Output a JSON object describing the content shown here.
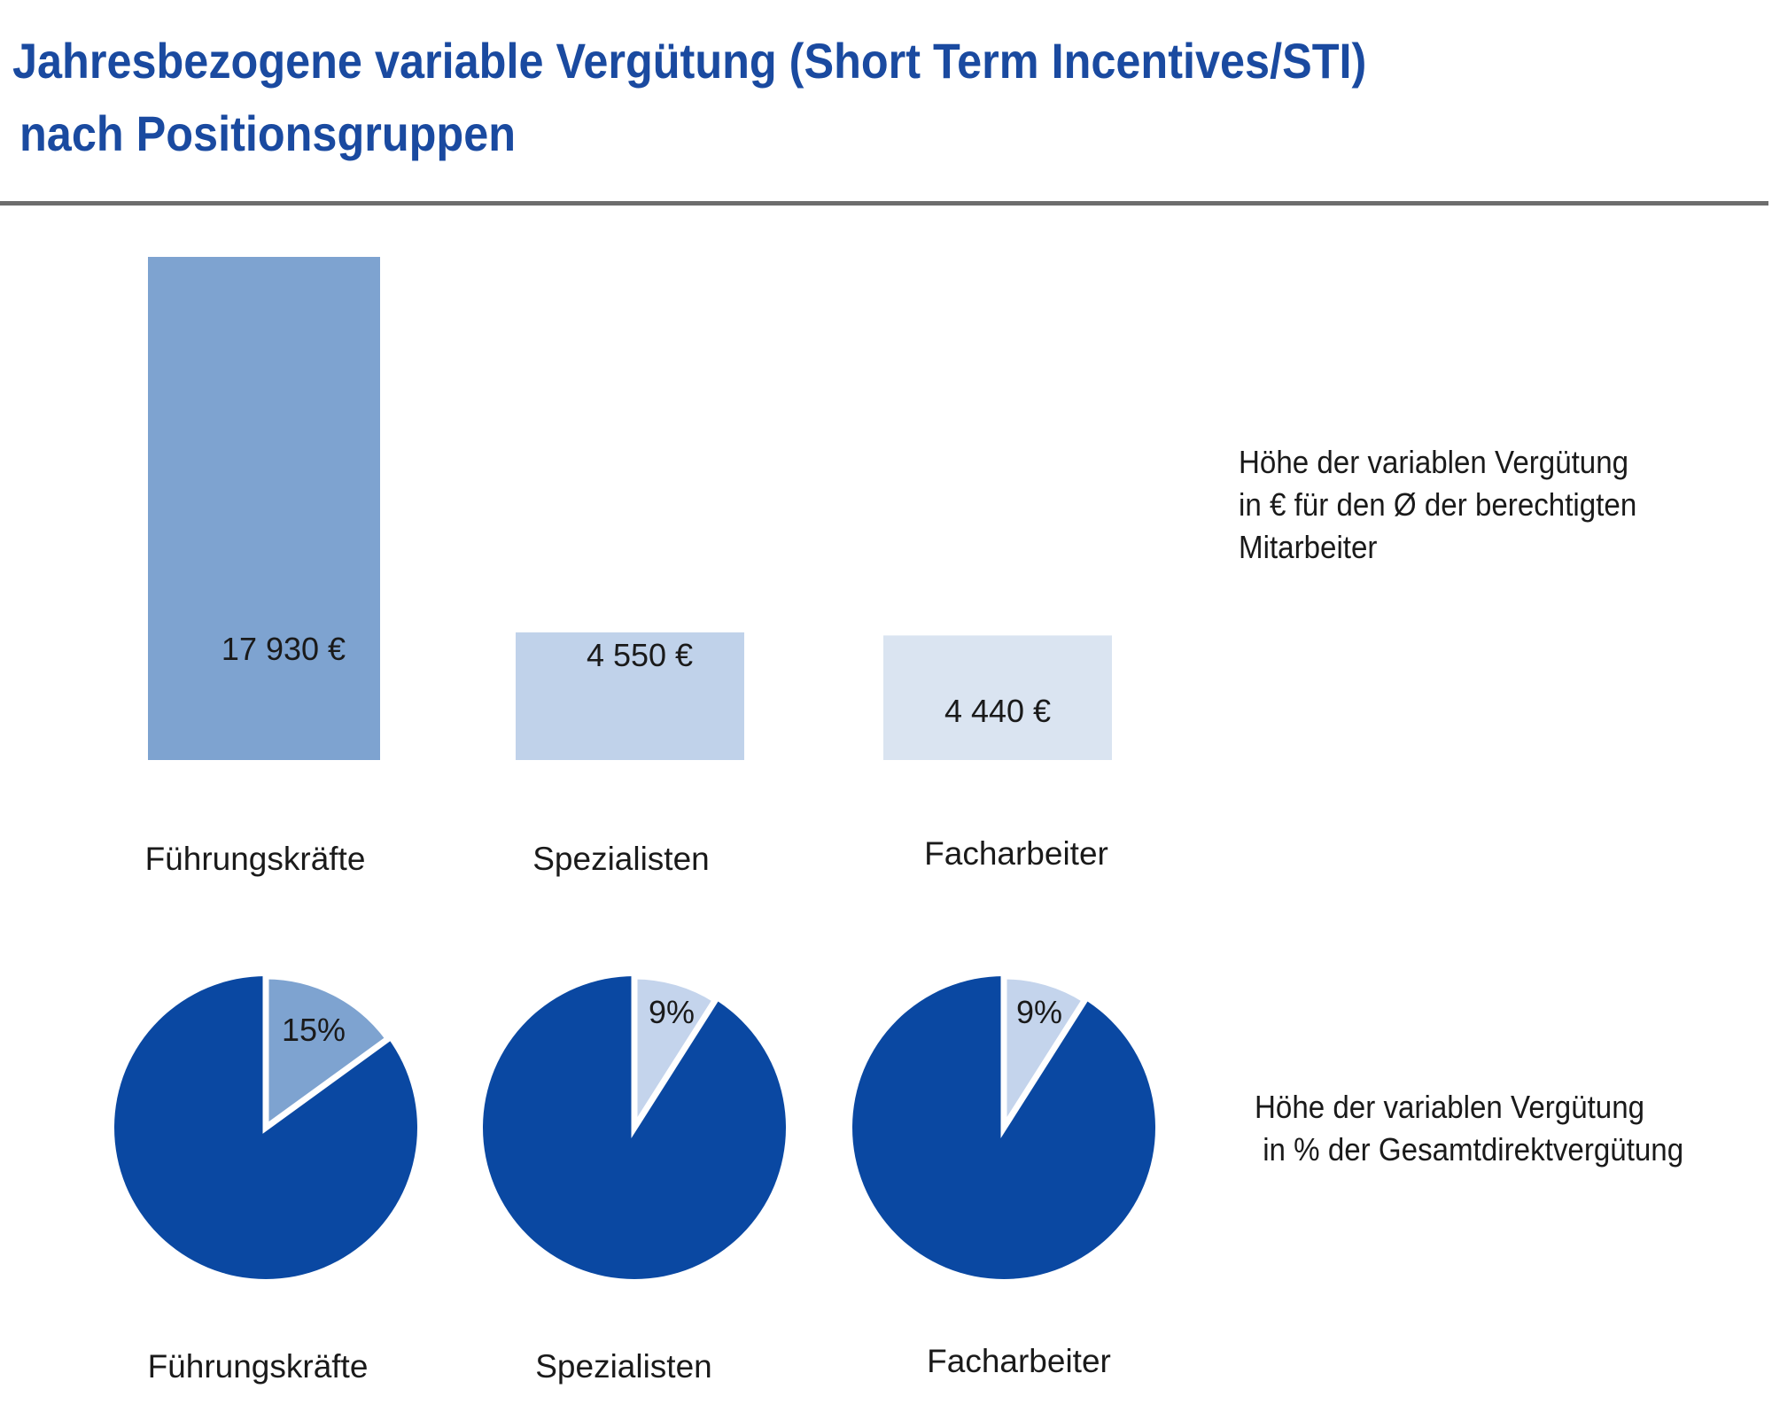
{
  "title": {
    "line1": "Jahresbezogene variable Vergütung (Short Term Incentives/STI)",
    "line2": "nach Positionsgruppen"
  },
  "colors": {
    "title": "#1a4aa0",
    "bar_fuehrung": "#7ea3d0",
    "bar_spezial": "#c0d2ea",
    "bar_fach": "#dae4f1",
    "pie_main": "#0a48a2",
    "pie_slice_fuehrung": "#7ea3d0",
    "pie_slice_other": "#c4d4ec"
  },
  "chart_data": [
    {
      "type": "bar",
      "categories": [
        "Führungskräfte",
        "Spezialisten",
        "Facharbeiter"
      ],
      "values": [
        17930,
        4550,
        4440
      ],
      "value_labels": [
        "17 930 €",
        "4 550 €",
        "4 440 €"
      ],
      "unit": "€",
      "note": [
        "Höhe der variablen Vergütung",
        "in € für den Ø der berechtigten",
        "Mitarbeiter"
      ]
    },
    {
      "type": "pie",
      "categories": [
        "Führungskräfte",
        "Spezialisten",
        "Facharbeiter"
      ],
      "values": [
        15,
        9,
        9
      ],
      "value_labels": [
        "15%",
        "9%",
        "9%"
      ],
      "unit": "%",
      "note": [
        "Höhe der variablen Vergütung",
        "in % der Gesamtdirektvergütung"
      ]
    }
  ]
}
